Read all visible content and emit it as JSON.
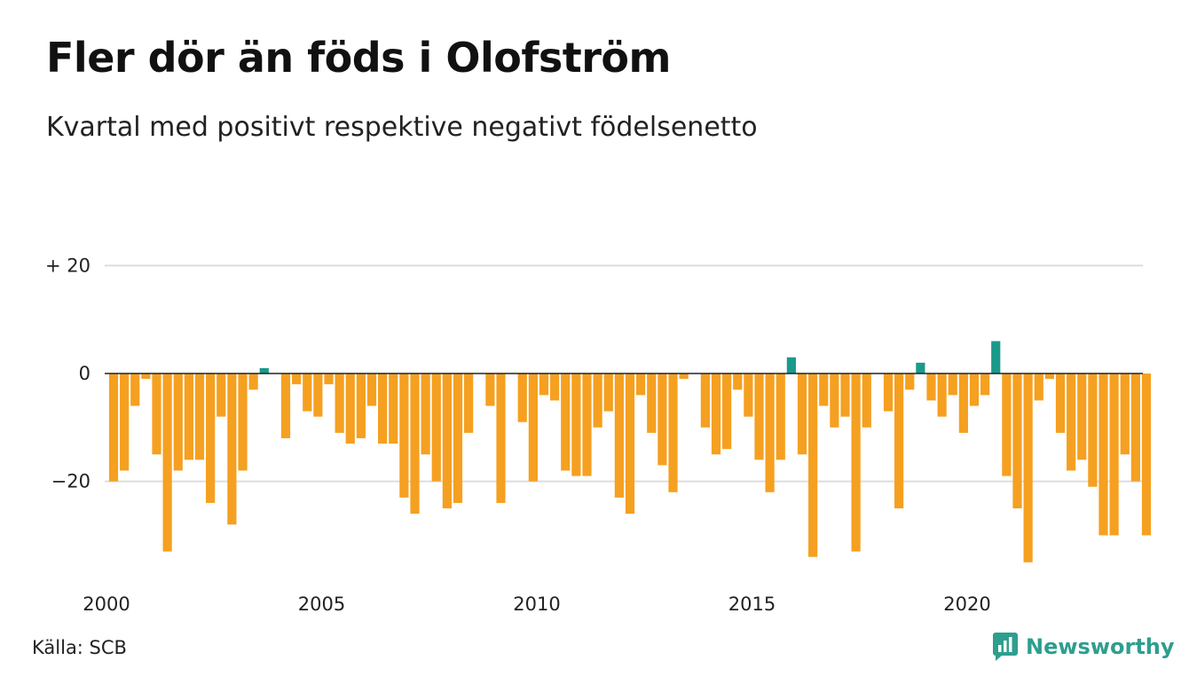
{
  "title": "Fler dör än föds i Olofström",
  "subtitle": "Kvartal med positivt respektive negativt födelsenetto",
  "source": "Källa: SCB",
  "brand": {
    "name": "Newsworthy",
    "icon": "newsworthy-logo-icon"
  },
  "colors": {
    "negative": "#f5a020",
    "positive": "#1a9a8a",
    "grid": "#dddddd",
    "zero": "#222222",
    "brand": "#2e9e8e"
  },
  "chart_data": {
    "type": "bar",
    "x_axis": {
      "min": 2000,
      "max": 2024.25,
      "ticks": [
        2000,
        2005,
        2010,
        2015,
        2020
      ],
      "tick_labels": [
        "2000",
        "2005",
        "2010",
        "2015",
        "2020"
      ]
    },
    "y_axis": {
      "min": -37,
      "max": 21,
      "ticks": [
        20,
        0,
        -20
      ],
      "tick_labels": [
        "+ 20",
        "0",
        "−20"
      ]
    },
    "grid": true,
    "legend": "none",
    "first_period": "2000 Q1",
    "x": [
      "2000 Q1",
      "2000 Q2",
      "2000 Q3",
      "2000 Q4",
      "2001 Q1",
      "2001 Q2",
      "2001 Q3",
      "2001 Q4",
      "2002 Q1",
      "2002 Q2",
      "2002 Q3",
      "2002 Q4",
      "2003 Q1",
      "2003 Q2",
      "2003 Q3",
      "2003 Q4",
      "2004 Q1",
      "2004 Q2",
      "2004 Q3",
      "2004 Q4",
      "2005 Q1",
      "2005 Q2",
      "2005 Q3",
      "2005 Q4",
      "2006 Q1",
      "2006 Q2",
      "2006 Q3",
      "2006 Q4",
      "2007 Q1",
      "2007 Q2",
      "2007 Q3",
      "2007 Q4",
      "2008 Q1",
      "2008 Q2",
      "2008 Q3",
      "2008 Q4",
      "2009 Q1",
      "2009 Q2",
      "2009 Q3",
      "2009 Q4",
      "2010 Q1",
      "2010 Q2",
      "2010 Q3",
      "2010 Q4",
      "2011 Q1",
      "2011 Q2",
      "2011 Q3",
      "2011 Q4",
      "2012 Q1",
      "2012 Q2",
      "2012 Q3",
      "2012 Q4",
      "2013 Q1",
      "2013 Q2",
      "2013 Q3",
      "2013 Q4",
      "2014 Q1",
      "2014 Q2",
      "2014 Q3",
      "2014 Q4",
      "2015 Q1",
      "2015 Q2",
      "2015 Q3",
      "2015 Q4",
      "2016 Q1",
      "2016 Q2",
      "2016 Q3",
      "2016 Q4",
      "2017 Q1",
      "2017 Q2",
      "2017 Q3",
      "2017 Q4",
      "2018 Q1",
      "2018 Q2",
      "2018 Q3",
      "2018 Q4",
      "2019 Q1",
      "2019 Q2",
      "2019 Q3",
      "2019 Q4",
      "2020 Q1",
      "2020 Q2",
      "2020 Q3",
      "2020 Q4",
      "2021 Q1",
      "2021 Q2",
      "2021 Q3",
      "2021 Q4",
      "2022 Q1",
      "2022 Q2",
      "2022 Q3",
      "2022 Q4",
      "2023 Q1",
      "2023 Q2",
      "2023 Q3",
      "2023 Q4",
      "2024 Q1"
    ],
    "values": [
      -20,
      -18,
      -6,
      -1,
      -15,
      -33,
      -18,
      -16,
      -16,
      -24,
      -8,
      -28,
      -18,
      -3,
      1,
      0,
      -12,
      -2,
      -7,
      -8,
      -2,
      -11,
      -13,
      -12,
      -6,
      -13,
      -13,
      -23,
      -26,
      -15,
      -20,
      -25,
      -24,
      -11,
      0,
      -6,
      -24,
      0,
      -9,
      -20,
      -4,
      -5,
      -18,
      -19,
      -19,
      -10,
      -7,
      -23,
      -26,
      -4,
      -11,
      -17,
      -22,
      -1,
      0,
      -10,
      -15,
      -14,
      -3,
      -8,
      -16,
      -22,
      -16,
      3,
      -15,
      -34,
      -6,
      -10,
      -8,
      -33,
      -10,
      0,
      -7,
      -25,
      -3,
      2,
      -5,
      -8,
      -4,
      -11,
      -6,
      -4,
      6,
      -19,
      -25,
      -35,
      -5,
      -1,
      -11,
      -18,
      -16,
      -21,
      -30,
      -30,
      -15,
      -20,
      -30
    ]
  }
}
